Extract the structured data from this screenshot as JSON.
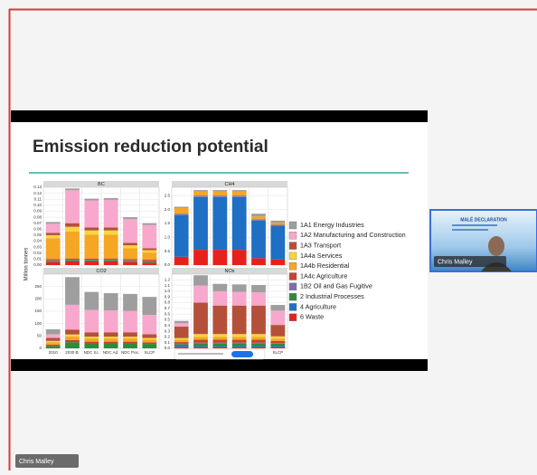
{
  "slide": {
    "title": "Emission reduction potential",
    "ylabel": "Million tonnes"
  },
  "legend": [
    {
      "name": "1A1 Energy Industries",
      "color": "#9e9e9e"
    },
    {
      "name": "1A2 Manufacturing and Construction",
      "color": "#f7a8cc"
    },
    {
      "name": "1A3 Transport",
      "color": "#b4503a"
    },
    {
      "name": "1A4a Services",
      "color": "#f7d63a"
    },
    {
      "name": "1A4b Residential",
      "color": "#f5a623"
    },
    {
      "name": "1A4c Agriculture",
      "color": "#c8412f"
    },
    {
      "name": "1B2 Oil and Gas Fugitive",
      "color": "#7d6fa8"
    },
    {
      "name": "2 Industrial Processes",
      "color": "#2e8b3a"
    },
    {
      "name": "4 Agriculture",
      "color": "#1f6fc4"
    },
    {
      "name": "6 Waste",
      "color": "#e8201c"
    }
  ],
  "chart_data": [
    {
      "type": "bar",
      "stacked": true,
      "title": "BC",
      "categories": [
        null,
        null,
        null,
        null,
        null,
        null
      ],
      "ylim": [
        0,
        0.13
      ],
      "yticks": [
        {
          "value": 0,
          "label": "0.00"
        },
        0.01,
        0.02,
        0.03,
        0.04,
        0.05,
        0.06,
        0.07,
        0.08,
        0.09,
        {
          "value": 0.1,
          "label": "0.10"
        },
        0.11,
        0.12,
        0.13
      ],
      "series": [
        {
          "values": [
            0.003,
            0.003,
            0.003,
            0.003,
            0.003,
            0.003
          ]
        },
        {
          "values": [
            0.015,
            0.055,
            0.045,
            0.046,
            0.04,
            0.039
          ]
        },
        {
          "values": [
            0.004,
            0.006,
            0.005,
            0.005,
            0.004,
            0.003
          ]
        },
        {
          "values": [
            0.005,
            0.008,
            0.007,
            0.007,
            0.005,
            0.004
          ]
        },
        {
          "values": [
            0.035,
            0.045,
            0.04,
            0.04,
            0.018,
            0.012
          ]
        },
        {
          "values": [
            0.002,
            0.002,
            0.002,
            0.002,
            0.002,
            0.002
          ]
        },
        {
          "values": [
            0.001,
            0.001,
            0.001,
            0.001,
            0.001,
            0.001
          ]
        },
        {
          "values": [
            0.002,
            0.002,
            0.002,
            0.002,
            0.002,
            0.002
          ]
        },
        {
          "values": [
            0,
            0,
            0,
            0,
            0,
            0
          ]
        },
        {
          "values": [
            0.005,
            0.006,
            0.006,
            0.006,
            0.005,
            0.004
          ]
        }
      ]
    },
    {
      "type": "bar",
      "stacked": true,
      "title": "CH4",
      "categories": [
        null,
        null,
        null,
        null,
        null,
        null
      ],
      "ylim": [
        0,
        2.8
      ],
      "yticks": [
        {
          "value": 0,
          "label": "0.0"
        },
        0.5,
        {
          "value": 1,
          "label": "1.0"
        },
        1.5,
        {
          "value": 2,
          "label": "2.0"
        },
        2.5
      ],
      "series": [
        {
          "values": [
            0.05,
            0.05,
            0.05,
            0.05,
            0.1,
            0.07
          ]
        },
        {
          "values": [
            0,
            0,
            0,
            0,
            0,
            0
          ]
        },
        {
          "values": [
            0,
            0,
            0,
            0,
            0,
            0
          ]
        },
        {
          "values": [
            0,
            0,
            0,
            0,
            0,
            0
          ]
        },
        {
          "values": [
            0.2,
            0.15,
            0.15,
            0.15,
            0.1,
            0.08
          ]
        },
        {
          "values": [
            0,
            0,
            0,
            0,
            0,
            0
          ]
        },
        {
          "values": [
            0.05,
            0.05,
            0.05,
            0.05,
            0.05,
            0.05
          ]
        },
        {
          "values": [
            0,
            0,
            0,
            0,
            0,
            0
          ]
        },
        {
          "values": [
            1.5,
            1.9,
            1.9,
            1.9,
            1.35,
            1.2
          ]
        },
        {
          "values": [
            0.3,
            0.55,
            0.55,
            0.55,
            0.25,
            0.2
          ]
        }
      ]
    },
    {
      "type": "bar",
      "stacked": true,
      "title": "CO2",
      "categories": [
        "2010",
        "2030 B.",
        "NDC Sc.",
        "NDC Ad.",
        "NDC Pos.",
        "SLCP"
      ],
      "ylim": [
        0,
        300
      ],
      "yticks": [
        0,
        50,
        100,
        150,
        200,
        250
      ],
      "series": [
        {
          "values": [
            20,
            112,
            73,
            70,
            69,
            73
          ]
        },
        {
          "values": [
            15,
            100,
            90,
            88,
            86,
            78
          ]
        },
        {
          "values": [
            12,
            20,
            18,
            18,
            18,
            15
          ]
        },
        {
          "values": [
            5,
            8,
            7,
            7,
            7,
            6
          ]
        },
        {
          "values": [
            10,
            15,
            13,
            13,
            13,
            12
          ]
        },
        {
          "values": [
            5,
            8,
            7,
            7,
            7,
            6
          ]
        },
        {
          "values": [
            0,
            0,
            0,
            0,
            0,
            0
          ]
        },
        {
          "values": [
            10,
            25,
            20,
            20,
            20,
            18
          ]
        },
        {
          "values": [
            0,
            0,
            0,
            0,
            0,
            0
          ]
        },
        {
          "values": [
            0,
            0,
            0,
            0,
            0,
            0
          ]
        }
      ]
    },
    {
      "type": "bar",
      "stacked": true,
      "title": "NOx",
      "categories": [
        null,
        null,
        null,
        null,
        null,
        "SLCP"
      ],
      "ylim": [
        0,
        1.3
      ],
      "yticks": [
        {
          "value": 0,
          "label": "0.0"
        },
        0.1,
        0.2,
        0.3,
        0.4,
        0.5,
        0.6,
        0.7,
        0.8,
        0.9,
        {
          "value": 1,
          "label": "1.0"
        },
        1.1,
        1.2
      ],
      "series": [
        {
          "values": [
            0.04,
            0.18,
            0.13,
            0.13,
            0.13,
            0.1
          ]
        },
        {
          "values": [
            0.06,
            0.3,
            0.25,
            0.24,
            0.23,
            0.25
          ]
        },
        {
          "values": [
            0.2,
            0.55,
            0.5,
            0.5,
            0.5,
            0.2
          ]
        },
        {
          "values": [
            0.03,
            0.05,
            0.05,
            0.05,
            0.05,
            0.04
          ]
        },
        {
          "values": [
            0.04,
            0.05,
            0.05,
            0.05,
            0.05,
            0.04
          ]
        },
        {
          "values": [
            0.03,
            0.05,
            0.05,
            0.05,
            0.05,
            0.04
          ]
        },
        {
          "values": [
            0.01,
            0.01,
            0.01,
            0.01,
            0.01,
            0.01
          ]
        },
        {
          "values": [
            0.03,
            0.05,
            0.05,
            0.05,
            0.05,
            0.04
          ]
        },
        {
          "values": [
            0.02,
            0.02,
            0.02,
            0.02,
            0.02,
            0.02
          ]
        },
        {
          "values": [
            0.02,
            0.02,
            0.02,
            0.02,
            0.02,
            0.02
          ]
        }
      ]
    }
  ],
  "thumbnail": {
    "slide_title": "MALÉ DECLARATION",
    "name": "Chris Malley"
  },
  "self_view": {
    "name": "Chris Malley"
  }
}
